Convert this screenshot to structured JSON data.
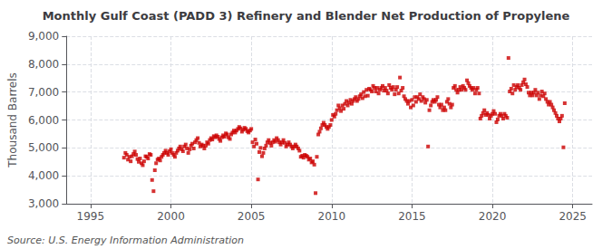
{
  "chart_data": {
    "type": "scatter",
    "title": "Monthly Gulf Coast (PADD 3) Refinery and Blender Net Production of Propylene",
    "ylabel": "Thousand Barrels",
    "annotations": [
      "Source: U.S. Energy Information Administration"
    ],
    "color": "#cc0000",
    "marker": "square",
    "grid": true,
    "xlim": [
      1993.5,
      2026.2
    ],
    "xticks": [
      1995,
      2000,
      2005,
      2010,
      2015,
      2020,
      2025
    ],
    "ylim": [
      3000,
      9000
    ],
    "yticks": [
      {
        "value": 3000,
        "label": "3,000"
      },
      {
        "value": 4000,
        "label": "4,000"
      },
      {
        "value": 5000,
        "label": "5,000"
      },
      {
        "value": 6000,
        "label": "6,000"
      },
      {
        "value": 7000,
        "label": "7,000"
      },
      {
        "value": 8000,
        "label": "8,000"
      },
      {
        "value": 9000,
        "label": "9,000"
      }
    ],
    "x": [
      1997.08,
      1997.17,
      1997.25,
      1997.33,
      1997.42,
      1997.5,
      1997.58,
      1997.67,
      1997.75,
      1997.83,
      1997.92,
      1998,
      1998.08,
      1998.17,
      1998.25,
      1998.33,
      1998.42,
      1998.5,
      1998.58,
      1998.67,
      1998.75,
      1998.83,
      1998.92,
      1999,
      1999.08,
      1999.17,
      1999.25,
      1999.33,
      1999.42,
      1999.5,
      1999.58,
      1999.67,
      1999.75,
      1999.83,
      1999.92,
      2000,
      2000.08,
      2000.17,
      2000.25,
      2000.33,
      2000.42,
      2000.5,
      2000.58,
      2000.67,
      2000.75,
      2000.83,
      2000.92,
      2001,
      2001.08,
      2001.17,
      2001.25,
      2001.33,
      2001.42,
      2001.5,
      2001.58,
      2001.67,
      2001.75,
      2001.83,
      2001.92,
      2002,
      2002.08,
      2002.17,
      2002.25,
      2002.33,
      2002.42,
      2002.5,
      2002.58,
      2002.67,
      2002.75,
      2002.83,
      2002.92,
      2003,
      2003.08,
      2003.17,
      2003.25,
      2003.33,
      2003.42,
      2003.5,
      2003.58,
      2003.67,
      2003.75,
      2003.83,
      2003.92,
      2004,
      2004.08,
      2004.17,
      2004.25,
      2004.33,
      2004.42,
      2004.5,
      2004.58,
      2004.67,
      2004.75,
      2004.83,
      2004.92,
      2005,
      2005.08,
      2005.17,
      2005.25,
      2005.33,
      2005.42,
      2005.5,
      2005.58,
      2005.67,
      2005.75,
      2005.83,
      2005.92,
      2006,
      2006.08,
      2006.17,
      2006.25,
      2006.33,
      2006.42,
      2006.5,
      2006.58,
      2006.67,
      2006.75,
      2006.83,
      2006.92,
      2007,
      2007.08,
      2007.17,
      2007.25,
      2007.33,
      2007.42,
      2007.5,
      2007.58,
      2007.67,
      2007.75,
      2007.83,
      2007.92,
      2008,
      2008.08,
      2008.17,
      2008.25,
      2008.33,
      2008.42,
      2008.5,
      2008.58,
      2008.67,
      2008.75,
      2008.83,
      2008.92,
      2009,
      2009.08,
      2009.17,
      2009.25,
      2009.33,
      2009.42,
      2009.5,
      2009.58,
      2009.67,
      2009.75,
      2009.83,
      2009.92,
      2010,
      2010.08,
      2010.17,
      2010.25,
      2010.33,
      2010.42,
      2010.5,
      2010.58,
      2010.67,
      2010.75,
      2010.83,
      2010.92,
      2011,
      2011.08,
      2011.17,
      2011.25,
      2011.33,
      2011.42,
      2011.5,
      2011.58,
      2011.67,
      2011.75,
      2011.83,
      2011.92,
      2012,
      2012.08,
      2012.17,
      2012.25,
      2012.33,
      2012.42,
      2012.5,
      2012.58,
      2012.67,
      2012.75,
      2012.83,
      2012.92,
      2013,
      2013.08,
      2013.17,
      2013.25,
      2013.33,
      2013.42,
      2013.5,
      2013.58,
      2013.67,
      2013.75,
      2013.83,
      2013.92,
      2014,
      2014.08,
      2014.17,
      2014.25,
      2014.33,
      2014.42,
      2014.5,
      2014.58,
      2014.67,
      2014.75,
      2014.83,
      2014.92,
      2015,
      2015.08,
      2015.17,
      2015.25,
      2015.33,
      2015.42,
      2015.5,
      2015.58,
      2015.67,
      2015.75,
      2015.83,
      2015.92,
      2016,
      2016.08,
      2016.17,
      2016.25,
      2016.33,
      2016.42,
      2016.5,
      2016.58,
      2016.67,
      2016.75,
      2016.83,
      2016.92,
      2017,
      2017.08,
      2017.17,
      2017.25,
      2017.33,
      2017.42,
      2017.5,
      2017.58,
      2017.67,
      2017.75,
      2017.83,
      2017.92,
      2018,
      2018.08,
      2018.17,
      2018.25,
      2018.33,
      2018.42,
      2018.5,
      2018.58,
      2018.67,
      2018.75,
      2018.83,
      2018.92,
      2019,
      2019.08,
      2019.17,
      2019.25,
      2019.33,
      2019.42,
      2019.5,
      2019.58,
      2019.67,
      2019.75,
      2019.83,
      2019.92,
      2020,
      2020.08,
      2020.17,
      2020.25,
      2020.33,
      2020.42,
      2020.5,
      2020.58,
      2020.67,
      2020.75,
      2020.83,
      2020.92,
      2021,
      2021.08,
      2021.17,
      2021.25,
      2021.33,
      2021.42,
      2021.5,
      2021.58,
      2021.67,
      2021.75,
      2021.83,
      2021.92,
      2022,
      2022.08,
      2022.17,
      2022.25,
      2022.33,
      2022.42,
      2022.5,
      2022.58,
      2022.67,
      2022.75,
      2022.83,
      2022.92,
      2023,
      2023.08,
      2023.17,
      2023.25,
      2023.33,
      2023.42,
      2023.5,
      2023.58,
      2023.67,
      2023.75,
      2023.83,
      2023.92,
      2024,
      2024.08,
      2024.17,
      2024.25,
      2024.33,
      2024.42,
      2024.5
    ],
    "values": [
      4650,
      4820,
      4750,
      4580,
      4680,
      4520,
      4700,
      4780,
      4870,
      4750,
      4600,
      4500,
      4620,
      4450,
      4380,
      4520,
      4700,
      4680,
      4620,
      4780,
      4750,
      3850,
      3450,
      4200,
      4450,
      4580,
      4620,
      4550,
      4680,
      4750,
      4820,
      4900,
      4820,
      4750,
      4880,
      4950,
      4820,
      4750,
      4680,
      4820,
      4900,
      4980,
      5050,
      4950,
      4880,
      5050,
      5120,
      4980,
      4820,
      4950,
      5080,
      5150,
      4980,
      5200,
      5280,
      5350,
      5180,
      5050,
      5120,
      5080,
      4980,
      5080,
      5200,
      5150,
      5280,
      5350,
      5300,
      5420,
      5380,
      5450,
      5400,
      5320,
      5250,
      5380,
      5450,
      5400,
      5520,
      5480,
      5380,
      5320,
      5480,
      5550,
      5620,
      5550,
      5620,
      5680,
      5750,
      5700,
      5580,
      5650,
      5720,
      5680,
      5600,
      5550,
      5620,
      5680,
      5200,
      5050,
      5300,
      5150,
      3870,
      4850,
      5000,
      4700,
      4820,
      4980,
      5080,
      5200,
      5280,
      5180,
      5080,
      5200,
      5280,
      5220,
      5350,
      5280,
      5200,
      5120,
      5200,
      5280,
      5180,
      5050,
      5120,
      5200,
      5120,
      5050,
      4980,
      5050,
      5120,
      5050,
      4980,
      4900,
      4680,
      4720,
      4650,
      4750,
      4720,
      4680,
      4580,
      4620,
      4480,
      4520,
      4400,
      3380,
      4680,
      5480,
      5580,
      5700,
      5820,
      5900,
      5820,
      5750,
      5680,
      5750,
      5820,
      6000,
      6180,
      6120,
      6220,
      6350,
      6520,
      6420,
      6320,
      6520,
      6400,
      6580,
      6680,
      6520,
      6620,
      6720,
      6580,
      6680,
      6750,
      6820,
      6680,
      6750,
      6850,
      6920,
      6780,
      7000,
      6850,
      7080,
      6870,
      7120,
      7080,
      7020,
      7220,
      7150,
      7020,
      7150,
      6950,
      7080,
      7150,
      7220,
      7050,
      7150,
      7050,
      6950,
      7250,
      7150,
      7080,
      7180,
      6920,
      7080,
      7180,
      6950,
      7520,
      7050,
      7150,
      6850,
      6750,
      6680,
      6580,
      6680,
      6450,
      6720,
      6520,
      6820,
      6650,
      6820,
      6750,
      6920,
      6680,
      6820,
      6750,
      6620,
      6720,
      5050,
      6350,
      6520,
      6650,
      6720,
      6650,
      6720,
      6820,
      6550,
      6450,
      6550,
      6350,
      6450,
      6350,
      6650,
      6750,
      6580,
      6450,
      6550,
      7150,
      7220,
      7080,
      6980,
      7080,
      7180,
      7080,
      7220,
      7150,
      7080,
      7420,
      7320,
      7220,
      7150,
      7080,
      7150,
      6950,
      7080,
      7150,
      6950,
      6050,
      6150,
      6250,
      6350,
      6180,
      6250,
      6180,
      6050,
      6150,
      6220,
      6320,
      6220,
      5920,
      6020,
      6150,
      6220,
      6150,
      6050,
      6220,
      6150,
      6080,
      8220,
      7020,
      7120,
      6950,
      7250,
      7080,
      7180,
      7250,
      7150,
      7080,
      7250,
      7350,
      7450,
      7280,
      7180,
      6980,
      6880,
      6980,
      6880,
      6980,
      7080,
      6880,
      6980,
      6750,
      6880,
      7020,
      6850,
      6950,
      6750,
      6650,
      6550,
      6650,
      6550,
      6450,
      6350,
      6250,
      6150,
      6050,
      5950,
      6050,
      6150,
      5020,
      6600
    ]
  }
}
